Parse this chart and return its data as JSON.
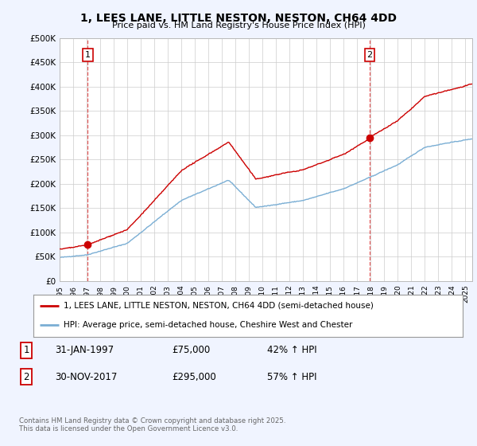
{
  "title1": "1, LEES LANE, LITTLE NESTON, NESTON, CH64 4DD",
  "title2": "Price paid vs. HM Land Registry's House Price Index (HPI)",
  "ylim": [
    0,
    500000
  ],
  "yticks": [
    0,
    50000,
    100000,
    150000,
    200000,
    250000,
    300000,
    350000,
    400000,
    450000,
    500000
  ],
  "ytick_labels": [
    "£0",
    "£50K",
    "£100K",
    "£150K",
    "£200K",
    "£250K",
    "£300K",
    "£350K",
    "£400K",
    "£450K",
    "£500K"
  ],
  "sale1_date": 1997.08,
  "sale1_price": 75000,
  "sale2_date": 2017.92,
  "sale2_price": 295000,
  "legend_line1": "1, LEES LANE, LITTLE NESTON, NESTON, CH64 4DD (semi-detached house)",
  "legend_line2": "HPI: Average price, semi-detached house, Cheshire West and Chester",
  "table_row1": [
    "1",
    "31-JAN-1997",
    "£75,000",
    "42% ↑ HPI"
  ],
  "table_row2": [
    "2",
    "30-NOV-2017",
    "£295,000",
    "57% ↑ HPI"
  ],
  "footnote": "Contains HM Land Registry data © Crown copyright and database right 2025.\nThis data is licensed under the Open Government Licence v3.0.",
  "bg_color": "#f0f4ff",
  "red_color": "#cc0000",
  "blue_color": "#7aaed4",
  "xmin": 1995,
  "xmax": 2025.5,
  "xticks": [
    1995,
    1996,
    1997,
    1998,
    1999,
    2000,
    2001,
    2002,
    2003,
    2004,
    2005,
    2006,
    2007,
    2008,
    2009,
    2010,
    2011,
    2012,
    2013,
    2014,
    2015,
    2016,
    2017,
    2018,
    2019,
    2020,
    2021,
    2022,
    2023,
    2024,
    2025
  ]
}
